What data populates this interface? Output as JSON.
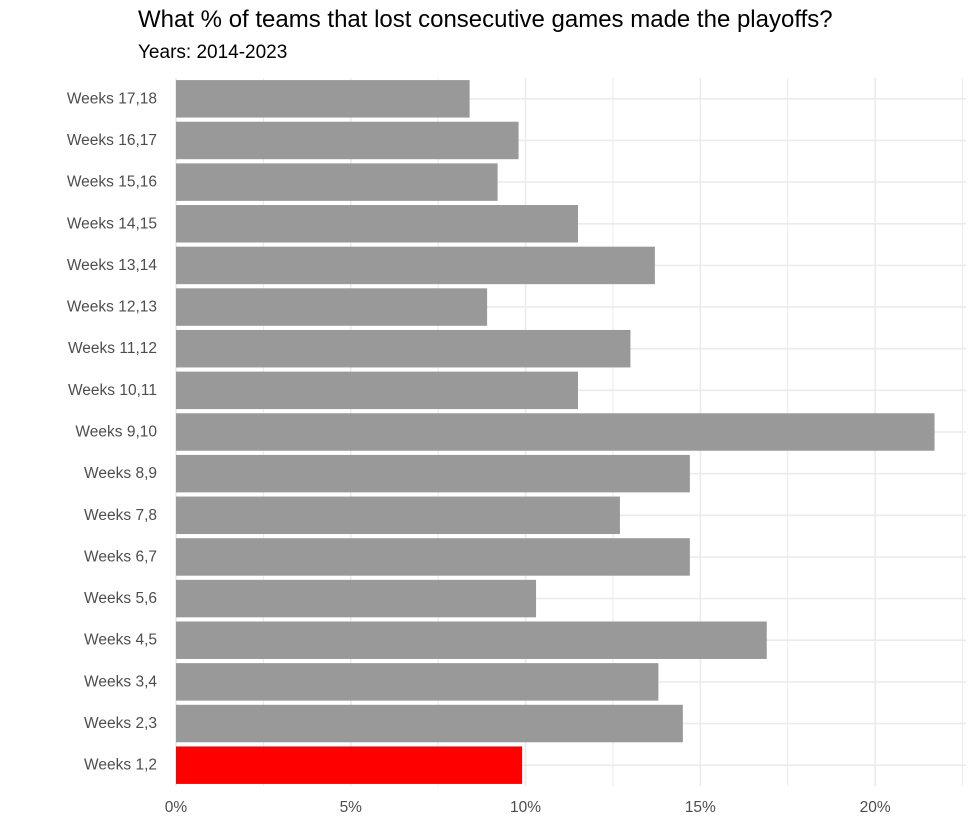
{
  "chart_data": {
    "type": "bar",
    "orientation": "horizontal",
    "title": "What % of teams that lost consecutive games made the playoffs?",
    "subtitle": "Years: 2014-2023",
    "xlabel": "",
    "ylabel": "",
    "categories": [
      "Weeks 1,2",
      "Weeks 2,3",
      "Weeks 3,4",
      "Weeks 4,5",
      "Weeks 5,6",
      "Weeks 6,7",
      "Weeks 7,8",
      "Weeks 8,9",
      "Weeks 9,10",
      "Weeks 10,11",
      "Weeks 11,12",
      "Weeks 12,13",
      "Weeks 13,14",
      "Weeks 14,15",
      "Weeks 15,16",
      "Weeks 16,17",
      "Weeks 17,18"
    ],
    "values": [
      9.9,
      14.5,
      13.8,
      16.9,
      10.3,
      14.7,
      12.7,
      14.7,
      21.7,
      11.5,
      13.0,
      8.9,
      13.7,
      11.5,
      9.2,
      9.8,
      8.4
    ],
    "highlight_category": "Weeks 1,2",
    "colors": {
      "bar": "#999999",
      "highlight": "#ff0000",
      "grid": "#ebebeb",
      "tick_text": "#4d4d4d"
    },
    "xlim": [
      0,
      22.6
    ],
    "xticks": [
      0,
      5,
      10,
      15,
      20
    ],
    "xtick_labels": [
      "0%",
      "5%",
      "10%",
      "15%",
      "20%"
    ],
    "grid": true,
    "legend": "none"
  }
}
